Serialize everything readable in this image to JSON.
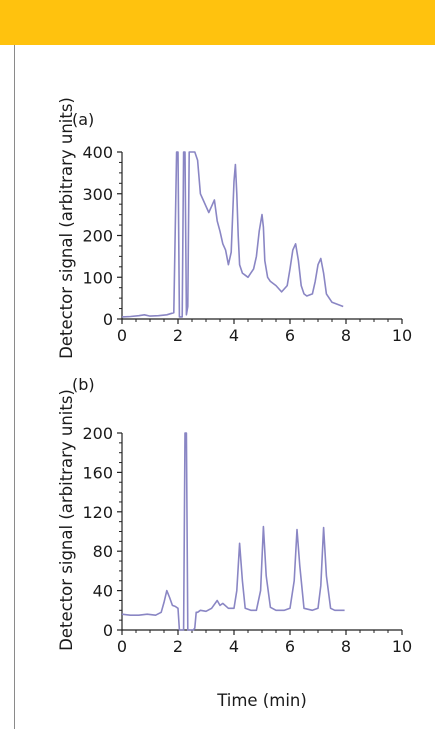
{
  "colors": {
    "banner": "#ffc20e",
    "trace": "#8a86c4",
    "axis": "#222222"
  },
  "chart_data": [
    {
      "type": "line",
      "panel_label": "(a)",
      "ylabel": "Detector signal (arbitrary units)",
      "xlabel": "",
      "xlim": [
        0,
        10
      ],
      "ylim": [
        0,
        400
      ],
      "xticks": [
        "0",
        "2",
        "4",
        "6",
        "8",
        "10"
      ],
      "yticks": [
        "0",
        "100",
        "200",
        "300",
        "400"
      ],
      "series": [
        {
          "x": [
            0.0,
            0.3,
            0.6,
            0.8,
            1.0,
            1.3,
            1.6,
            1.85,
            1.95,
            2.0,
            2.05,
            2.15,
            2.2,
            2.25,
            2.3,
            2.35,
            2.4,
            2.45,
            2.5,
            2.55,
            2.6,
            2.7,
            2.8,
            2.9,
            3.0,
            3.1,
            3.2,
            3.3,
            3.4,
            3.5,
            3.6,
            3.7,
            3.8,
            3.9,
            4.0,
            4.05,
            4.1,
            4.15,
            4.2,
            4.3,
            4.4,
            4.5,
            4.6,
            4.7,
            4.8,
            4.9,
            5.0,
            5.05,
            5.1,
            5.2,
            5.3,
            5.5,
            5.7,
            5.9,
            6.0,
            6.1,
            6.2,
            6.3,
            6.4,
            6.5,
            6.6,
            6.8,
            6.9,
            7.0,
            7.1,
            7.2,
            7.3,
            7.5,
            7.7,
            7.9
          ],
          "y": [
            5,
            6,
            8,
            10,
            7,
            8,
            10,
            15,
            400,
            400,
            5,
            5,
            400,
            400,
            10,
            30,
            400,
            400,
            400,
            400,
            400,
            380,
            300,
            285,
            270,
            255,
            270,
            285,
            235,
            210,
            180,
            165,
            130,
            160,
            330,
            370,
            300,
            200,
            130,
            110,
            105,
            100,
            110,
            120,
            150,
            210,
            250,
            220,
            140,
            100,
            90,
            80,
            65,
            80,
            120,
            165,
            180,
            140,
            80,
            60,
            55,
            60,
            90,
            130,
            145,
            110,
            60,
            40,
            35,
            30
          ]
        }
      ]
    },
    {
      "type": "line",
      "panel_label": "(b)",
      "ylabel": "Detector signal (arbitrary units)",
      "xlabel": "Time (min)",
      "xlim": [
        0,
        10
      ],
      "ylim": [
        0,
        200
      ],
      "xticks": [
        "0",
        "2",
        "4",
        "6",
        "8",
        "10"
      ],
      "yticks": [
        "0",
        "40",
        "80",
        "120",
        "160",
        "200"
      ],
      "series": [
        {
          "x": [
            0.0,
            0.3,
            0.6,
            0.9,
            1.2,
            1.4,
            1.5,
            1.6,
            1.7,
            1.8,
            1.9,
            2.0,
            2.05,
            2.15,
            2.2,
            2.25,
            2.3,
            2.35,
            2.45,
            2.55,
            2.6,
            2.65,
            2.7,
            2.8,
            3.0,
            3.2,
            3.4,
            3.5,
            3.6,
            3.8,
            4.0,
            4.1,
            4.2,
            4.3,
            4.4,
            4.6,
            4.8,
            4.95,
            5.05,
            5.15,
            5.3,
            5.5,
            5.8,
            6.0,
            6.15,
            6.25,
            6.35,
            6.5,
            6.8,
            7.0,
            7.1,
            7.2,
            7.3,
            7.45,
            7.6,
            7.8,
            7.95
          ],
          "y": [
            16,
            15,
            15,
            16,
            15,
            18,
            28,
            40,
            33,
            25,
            24,
            22,
            0,
            0,
            0,
            200,
            200,
            0,
            0,
            0,
            2,
            18,
            18,
            20,
            19,
            22,
            30,
            25,
            27,
            22,
            22,
            40,
            88,
            50,
            22,
            20,
            20,
            40,
            105,
            55,
            23,
            20,
            20,
            22,
            50,
            102,
            65,
            22,
            20,
            22,
            45,
            104,
            55,
            22,
            20,
            20,
            20
          ]
        }
      ]
    }
  ]
}
